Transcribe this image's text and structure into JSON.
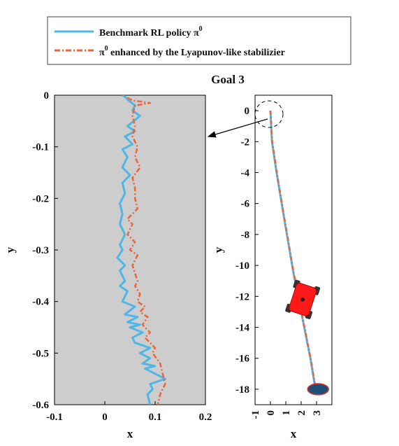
{
  "title": "Goal 3",
  "legend": {
    "entries": [
      {
        "label": "Benchmark RL policy π",
        "sup": "0",
        "color": "#4fb6e6",
        "style": "solid"
      },
      {
        "label_pre": "π",
        "sup": "0",
        "label_post": " enhanced by the Lyapunov-like stabilizier",
        "color": "#e8663a",
        "style": "dash-dot"
      }
    ]
  },
  "colors": {
    "benchmark": "#4fb6e6",
    "enhanced": "#e8663a",
    "zoom_background": "#cdcdcd",
    "robot": "#ff1a1a",
    "goal": "#1f4e79",
    "goal_edge": "#d63a2a"
  },
  "chart_data": [
    {
      "type": "line",
      "panel": "zoomed",
      "xlabel": "x",
      "ylabel": "y",
      "xlim": [
        -0.1,
        0.2
      ],
      "ylim": [
        -0.6,
        0.0
      ],
      "xticks": [
        "-0.1",
        "0",
        "0.1",
        "0.2"
      ],
      "yticks": [
        "0",
        "-0.1",
        "-0.2",
        "-0.3",
        "-0.4",
        "-0.5",
        "-0.6"
      ],
      "background": "gray",
      "series": [
        {
          "name": "Benchmark RL policy π0",
          "x": [
            0.035,
            0.04,
            0.045,
            0.05,
            0.06,
            0.055,
            0.07,
            0.045,
            0.06,
            0.04,
            0.055,
            0.035,
            0.045,
            0.035,
            0.05,
            0.035,
            0.04,
            0.03,
            0.035,
            0.03,
            0.04,
            0.03,
            0.035,
            0.025,
            0.04,
            0.03,
            0.04,
            0.03,
            0.045,
            0.035,
            0.06,
            0.04,
            0.065,
            0.045,
            0.07,
            0.05,
            0.075,
            0.055,
            0.06,
            0.09,
            0.07,
            0.09,
            0.075,
            0.1,
            0.08,
            0.12,
            0.09,
            0.095,
            0.085,
            0.09
          ],
          "y": [
            0.0,
            -0.003,
            -0.008,
            -0.012,
            -0.02,
            -0.03,
            -0.04,
            -0.06,
            -0.07,
            -0.08,
            -0.095,
            -0.105,
            -0.12,
            -0.14,
            -0.155,
            -0.17,
            -0.19,
            -0.21,
            -0.23,
            -0.25,
            -0.27,
            -0.29,
            -0.3,
            -0.315,
            -0.33,
            -0.34,
            -0.36,
            -0.37,
            -0.38,
            -0.4,
            -0.41,
            -0.425,
            -0.43,
            -0.44,
            -0.445,
            -0.45,
            -0.46,
            -0.47,
            -0.48,
            -0.49,
            -0.5,
            -0.51,
            -0.52,
            -0.525,
            -0.53,
            -0.55,
            -0.56,
            -0.57,
            -0.58,
            -0.6
          ]
        },
        {
          "name": "π0 enhanced by the Lyapunov-like stabilizier",
          "x": [
            0.045,
            0.055,
            0.09,
            0.06,
            0.055,
            0.06,
            0.055,
            0.065,
            0.06,
            0.07,
            0.055,
            0.06,
            0.06,
            0.065,
            0.045,
            0.055,
            0.045,
            0.06,
            0.05,
            0.065,
            0.055,
            0.06,
            0.065,
            0.06,
            0.07,
            0.065,
            0.08,
            0.07,
            0.085,
            0.075,
            0.09,
            0.08,
            0.1,
            0.095,
            0.11,
            0.115,
            0.12,
            0.11,
            0.105
          ],
          "y": [
            -0.005,
            -0.01,
            -0.015,
            -0.02,
            -0.04,
            -0.06,
            -0.08,
            -0.1,
            -0.12,
            -0.14,
            -0.16,
            -0.18,
            -0.2,
            -0.22,
            -0.24,
            -0.25,
            -0.27,
            -0.285,
            -0.3,
            -0.31,
            -0.33,
            -0.345,
            -0.36,
            -0.37,
            -0.385,
            -0.4,
            -0.41,
            -0.42,
            -0.43,
            -0.445,
            -0.46,
            -0.47,
            -0.49,
            -0.5,
            -0.52,
            -0.54,
            -0.56,
            -0.58,
            -0.6
          ]
        }
      ]
    },
    {
      "type": "line",
      "panel": "full",
      "xlabel": "x",
      "ylabel": "y",
      "xlim": [
        -1,
        4
      ],
      "ylim": [
        -19,
        1
      ],
      "xticks": [
        "-1",
        "0",
        "1",
        "2",
        "3"
      ],
      "yticks": [
        "0",
        "-2",
        "-4",
        "-6",
        "-8",
        "-10",
        "-12",
        "-14",
        "-16",
        "-18"
      ],
      "series": [
        {
          "name": "Benchmark RL policy π0",
          "x": [
            0,
            0.05,
            0.1,
            0.4,
            0.9,
            1.5,
            2.1,
            2.6,
            2.9,
            3.0
          ],
          "y": [
            0,
            -1.0,
            -2.0,
            -4.0,
            -7.0,
            -10.5,
            -13.5,
            -16.0,
            -17.8,
            -18.0
          ]
        },
        {
          "name": "π0 enhanced by the Lyapunov-like stabilizier",
          "x": [
            0,
            0.06,
            0.12,
            0.42,
            0.92,
            1.52,
            2.12,
            2.62,
            2.92,
            3.0
          ],
          "y": [
            0,
            -1.0,
            -2.0,
            -4.0,
            -7.0,
            -10.5,
            -13.5,
            -16.0,
            -17.8,
            -18.0
          ]
        }
      ],
      "robot": {
        "x": 2.1,
        "y": -12.2
      },
      "goal": {
        "x": 3.1,
        "y": -18.0
      }
    }
  ]
}
